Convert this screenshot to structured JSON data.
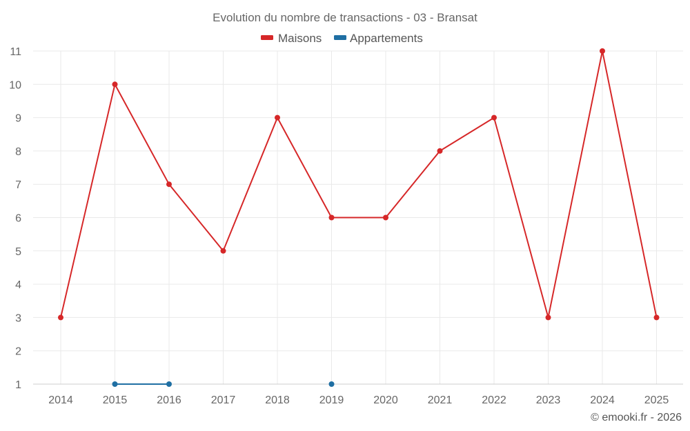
{
  "chart_data": {
    "type": "line",
    "title": "Evolution du nombre de transactions - 03 - Bransat",
    "xlabel": "",
    "ylabel": "",
    "categories": [
      "2014",
      "2015",
      "2016",
      "2017",
      "2018",
      "2019",
      "2020",
      "2021",
      "2022",
      "2023",
      "2024",
      "2025"
    ],
    "ylim": [
      1,
      11
    ],
    "yticks": [
      "1",
      "2",
      "3",
      "4",
      "5",
      "6",
      "7",
      "8",
      "9",
      "10",
      "11"
    ],
    "grid": true,
    "legend_position": "top-center",
    "series": [
      {
        "name": "Maisons",
        "color": "#d62728",
        "values": [
          3,
          10,
          7,
          5,
          9,
          6,
          6,
          8,
          9,
          3,
          11,
          3
        ]
      },
      {
        "name": "Appartements",
        "color": "#1f6fa3",
        "values": [
          null,
          1,
          1,
          null,
          null,
          1,
          null,
          null,
          null,
          null,
          null,
          null
        ]
      }
    ]
  },
  "credit": "© emooki.fr - 2026"
}
